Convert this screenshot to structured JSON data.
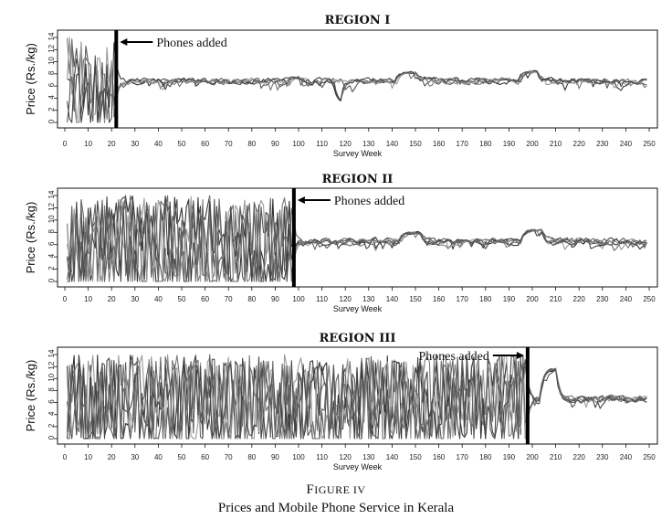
{
  "figure": {
    "label": "Figure IV",
    "caption": "Prices and Mobile Phone Service in Kerala"
  },
  "colors": {
    "series": [
      "#333333",
      "#555555",
      "#777777",
      "#999999",
      "#444444",
      "#666666",
      "#888888",
      "#aaaaaa"
    ],
    "axis": "#111111"
  },
  "chart_data": [
    {
      "type": "line",
      "title": "REGION I",
      "xlabel": "Survey Week",
      "ylabel": "Price (Rs./kg)",
      "xlim": [
        0,
        250
      ],
      "ylim": [
        0,
        14
      ],
      "xticks": [
        0,
        10,
        20,
        30,
        40,
        50,
        60,
        70,
        80,
        90,
        100,
        110,
        120,
        130,
        140,
        150,
        160,
        170,
        180,
        190,
        200,
        210,
        220,
        230,
        240,
        250
      ],
      "yticks": [
        0,
        2,
        4,
        6,
        8,
        10,
        12,
        14
      ],
      "annotation": {
        "text": "Phones added",
        "x": 22
      },
      "n_series": 5,
      "levels": {
        "pre_mean": 5.5,
        "pre_spread": 5.5,
        "post_mean": 6.8,
        "post_spread": 0.8
      },
      "bumps": [
        {
          "x": [
            95,
            100
          ],
          "y": 7.4
        },
        {
          "x": [
            142,
            150
          ],
          "y": 8.2
        },
        {
          "x": [
            195,
            202
          ],
          "y": 8.4
        }
      ],
      "dips": [
        {
          "x": [
            116,
            118
          ],
          "y": 3.2
        }
      ],
      "grid": false
    },
    {
      "type": "line",
      "title": "REGION II",
      "xlabel": "Survey Week",
      "ylabel": "Price (Rs./kg)",
      "xlim": [
        0,
        250
      ],
      "ylim": [
        0,
        14
      ],
      "xticks": [
        0,
        10,
        20,
        30,
        40,
        50,
        60,
        70,
        80,
        90,
        100,
        110,
        120,
        130,
        140,
        150,
        160,
        170,
        180,
        190,
        200,
        210,
        220,
        230,
        240,
        250
      ],
      "yticks": [
        0,
        2,
        4,
        6,
        8,
        10,
        12,
        14
      ],
      "annotation": {
        "text": "Phones added",
        "x": 98
      },
      "n_series": 6,
      "levels": {
        "pre_mean": 6.0,
        "pre_spread": 6.5,
        "post_mean": 6.5,
        "post_spread": 0.9
      },
      "bumps": [
        {
          "x": [
            144,
            152
          ],
          "y": 7.9
        },
        {
          "x": [
            196,
            204
          ],
          "y": 8.3
        }
      ],
      "dips": [],
      "grid": false
    },
    {
      "type": "line",
      "title": "REGION III",
      "xlabel": "Survey Week",
      "ylabel": "Price (Rs./kg)",
      "xlim": [
        0,
        250
      ],
      "ylim": [
        0,
        14
      ],
      "xticks": [
        0,
        10,
        20,
        30,
        40,
        50,
        60,
        70,
        80,
        90,
        100,
        110,
        120,
        130,
        140,
        150,
        160,
        170,
        180,
        190,
        200,
        210,
        220,
        230,
        240,
        250
      ],
      "yticks": [
        0,
        2,
        4,
        6,
        8,
        10,
        12,
        14
      ],
      "annotation": {
        "text": "Phones added",
        "x": 198
      },
      "n_series": 6,
      "levels": {
        "pre_mean": 6.5,
        "pre_spread": 6.5,
        "post_mean": 6.6,
        "post_spread": 0.9
      },
      "bumps": [
        {
          "x": [
            204,
            210
          ],
          "y": 11.5
        }
      ],
      "dips": [],
      "grid": false
    }
  ]
}
